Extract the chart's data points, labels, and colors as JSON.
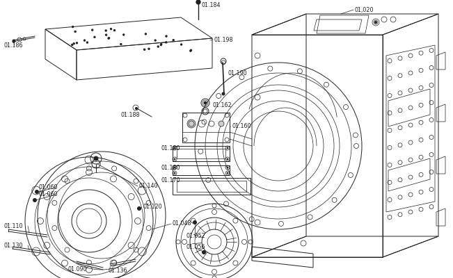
{
  "background_color": "#ffffff",
  "line_color": "#222222",
  "label_fontsize": 5.8,
  "fig_width": 6.51,
  "fig_height": 4.0,
  "dpi": 100
}
